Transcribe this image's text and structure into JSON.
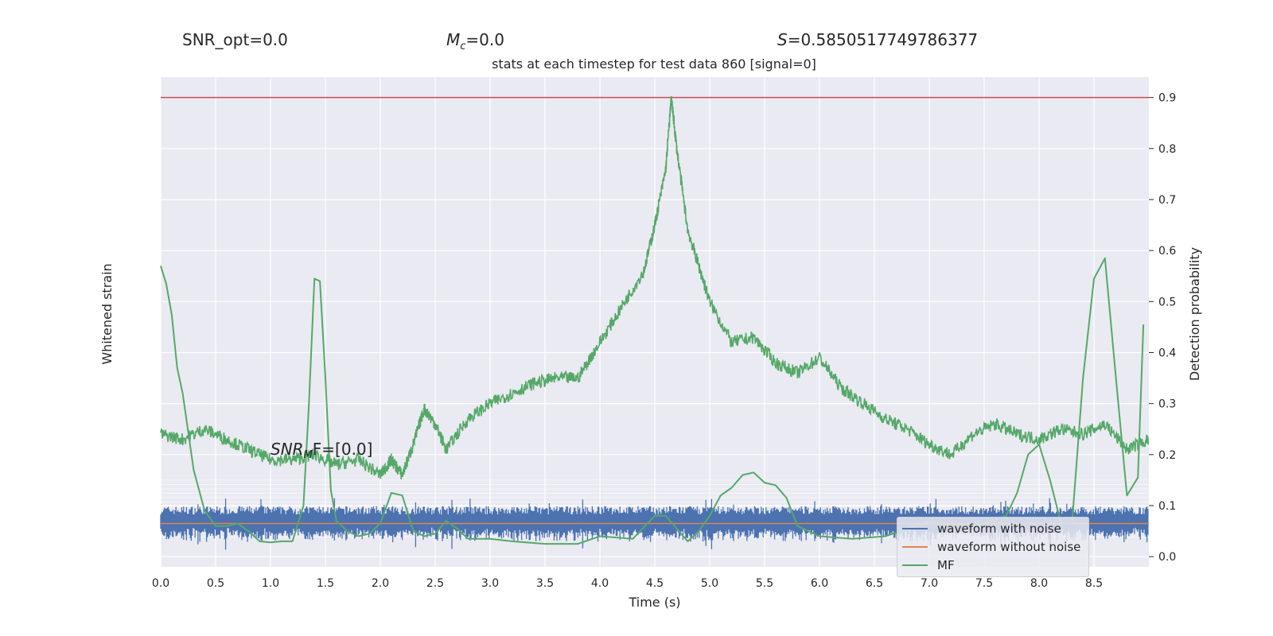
{
  "header": {
    "snr_opt": "SNR_opt=0.0",
    "mc_symbol": "M",
    "mc_sub": "c",
    "mc_value": "=0.0",
    "s_symbol": "S",
    "s_value": "=0.5850517749786377"
  },
  "chart_data": {
    "type": "line",
    "title": "stats at each timestep for test data 860 [signal=0]",
    "xlabel": "Time (s)",
    "ylabel_left": "Whitened strain",
    "ylabel_right": "Detection probability",
    "xlim": [
      0.0,
      9.0
    ],
    "ylim_right": [
      -0.02,
      0.94
    ],
    "xticks": [
      "0.0",
      "0.5",
      "1.0",
      "1.5",
      "2.0",
      "2.5",
      "3.0",
      "3.5",
      "4.0",
      "4.5",
      "5.0",
      "5.5",
      "6.0",
      "6.5",
      "7.0",
      "7.5",
      "8.0",
      "8.5"
    ],
    "yticks_right": [
      "0.0",
      "0.1",
      "0.2",
      "0.3",
      "0.4",
      "0.5",
      "0.6",
      "0.7",
      "0.8",
      "0.9"
    ],
    "grid": true,
    "threshold": 0.9,
    "annotation": {
      "pre": "SNR",
      "sub": "M",
      "post": "F=[0.0]"
    },
    "legend_position": "lower-right",
    "series": [
      {
        "name": "waveform with noise",
        "color": "#4c72b0",
        "kind": "noise-band",
        "band_low": 0.04,
        "band_high": 0.095
      },
      {
        "name": "waveform without noise",
        "color": "#dd8452",
        "value": 0.065
      },
      {
        "name": "MF",
        "color": "#55a868",
        "x": [
          0.0,
          0.05,
          0.1,
          0.15,
          0.2,
          0.3,
          0.4,
          0.5,
          0.6,
          0.7,
          0.8,
          0.9,
          1.0,
          1.1,
          1.2,
          1.3,
          1.35,
          1.4,
          1.45,
          1.5,
          1.55,
          1.6,
          1.7,
          1.8,
          1.9,
          2.0,
          2.1,
          2.2,
          2.3,
          2.4,
          2.5,
          2.6,
          2.7,
          2.8,
          2.9,
          3.0,
          3.2,
          3.5,
          3.8,
          4.0,
          4.3,
          4.5,
          4.6,
          4.7,
          4.8,
          4.9,
          5.0,
          5.1,
          5.2,
          5.3,
          5.4,
          5.5,
          5.6,
          5.7,
          5.8,
          6.0,
          6.3,
          6.6,
          6.8,
          7.0,
          7.2,
          7.5,
          7.7,
          7.8,
          7.9,
          8.0,
          8.1,
          8.2,
          8.3,
          8.4,
          8.5,
          8.6,
          8.7,
          8.8,
          8.9,
          8.95
        ],
        "y": [
          0.57,
          0.535,
          0.475,
          0.37,
          0.32,
          0.17,
          0.09,
          0.06,
          0.06,
          0.065,
          0.05,
          0.03,
          0.028,
          0.03,
          0.03,
          0.1,
          0.3,
          0.545,
          0.54,
          0.35,
          0.13,
          0.07,
          0.05,
          0.04,
          0.045,
          0.065,
          0.125,
          0.12,
          0.05,
          0.04,
          0.045,
          0.07,
          0.055,
          0.035,
          0.035,
          0.035,
          0.03,
          0.025,
          0.025,
          0.04,
          0.035,
          0.08,
          0.08,
          0.055,
          0.03,
          0.05,
          0.08,
          0.12,
          0.135,
          0.16,
          0.165,
          0.145,
          0.14,
          0.115,
          0.06,
          0.04,
          0.035,
          0.04,
          0.055,
          0.07,
          0.06,
          0.065,
          0.08,
          0.125,
          0.2,
          0.22,
          0.15,
          0.065,
          0.065,
          0.35,
          0.545,
          0.585,
          0.35,
          0.12,
          0.155,
          0.455
        ]
      },
      {
        "name": "detection probability",
        "color": "#55a868",
        "kind": "stepped",
        "x": [
          0.0,
          0.2,
          0.4,
          0.6,
          0.8,
          1.0,
          1.2,
          1.4,
          1.6,
          1.8,
          2.0,
          2.1,
          2.2,
          2.3,
          2.4,
          2.5,
          2.6,
          2.8,
          3.0,
          3.2,
          3.4,
          3.6,
          3.8,
          4.0,
          4.2,
          4.4,
          4.5,
          4.6,
          4.65,
          4.7,
          4.8,
          4.9,
          5.0,
          5.2,
          5.4,
          5.6,
          5.8,
          6.0,
          6.2,
          6.4,
          6.6,
          6.8,
          7.0,
          7.2,
          7.4,
          7.6,
          7.8,
          8.0,
          8.2,
          8.4,
          8.6,
          8.8,
          9.0
        ],
        "y": [
          0.24,
          0.23,
          0.25,
          0.23,
          0.21,
          0.19,
          0.19,
          0.2,
          0.18,
          0.19,
          0.16,
          0.19,
          0.16,
          0.22,
          0.29,
          0.26,
          0.21,
          0.27,
          0.3,
          0.32,
          0.34,
          0.35,
          0.35,
          0.42,
          0.49,
          0.56,
          0.65,
          0.76,
          0.9,
          0.8,
          0.64,
          0.57,
          0.5,
          0.42,
          0.43,
          0.38,
          0.36,
          0.39,
          0.33,
          0.3,
          0.27,
          0.25,
          0.22,
          0.2,
          0.24,
          0.26,
          0.24,
          0.23,
          0.25,
          0.24,
          0.26,
          0.21,
          0.23
        ]
      }
    ]
  }
}
